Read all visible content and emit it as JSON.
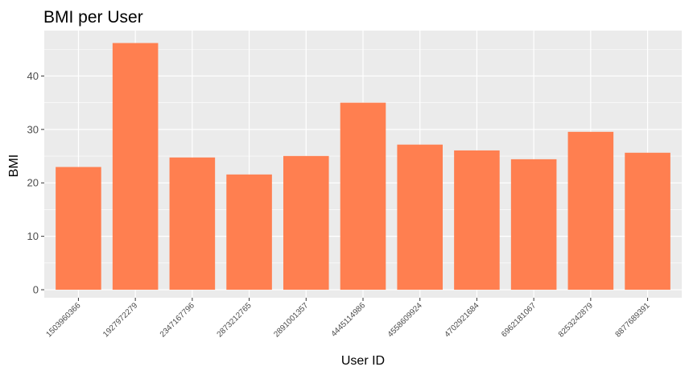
{
  "chart_data": {
    "type": "bar",
    "title": "BMI per User",
    "xlabel": "User ID",
    "ylabel": "BMI",
    "categories": [
      "1503960366",
      "1927972279",
      "2347167796",
      "2873212765",
      "2891001357",
      "4445114986",
      "4558609924",
      "4702921684",
      "6962181067",
      "8253242879",
      "8877689391"
    ],
    "values": [
      22.97,
      46.17,
      24.75,
      21.57,
      25.03,
      35.0,
      27.16,
      26.07,
      24.42,
      29.55,
      25.64
    ],
    "ylim": [
      -1.5,
      48.5
    ],
    "yticks": [
      0,
      10,
      20,
      30,
      40
    ],
    "grid": true,
    "colors": {
      "bar": "#FF7F50",
      "panel": "#EBEBEB",
      "grid": "#FFFFFF",
      "tick_text": "#4D4D4D"
    }
  }
}
